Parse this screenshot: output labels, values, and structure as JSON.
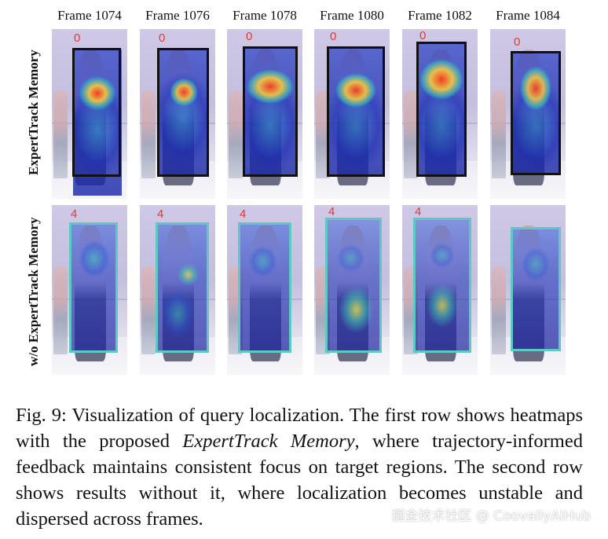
{
  "columns": [
    "Frame 1074",
    "Frame 1076",
    "Frame 1078",
    "Frame 1080",
    "Frame 1082",
    "Frame 1084"
  ],
  "rows": [
    {
      "label": "ExpertTrack Memory",
      "track_id": "0",
      "box_color": "#111111",
      "heatmap_description_colors": [
        "#ff3b1a",
        "#ffd23a",
        "#2bd1c3",
        "#1c2db5"
      ]
    },
    {
      "label": "w/o ExpertTrack Memory",
      "track_id": "4",
      "box_color": "#5ec8c2",
      "heatmap_description_colors": [
        "#e6e04a",
        "#3fc8b3",
        "#2b57d8",
        "#1a1f9e"
      ]
    }
  ],
  "caption": {
    "prefix": "Fig. 9: Visualization of query localization. The first row shows heatmaps with the proposed ",
    "emphasis": "ExpertTrack Memory",
    "suffix": ", where trajectory-informed feedback maintains consistent focus on target regions. The second row shows results without it, where localization becomes unstable and dispersed across frames."
  },
  "watermark": "掘金技术社区 @ CoovallyAIHub"
}
